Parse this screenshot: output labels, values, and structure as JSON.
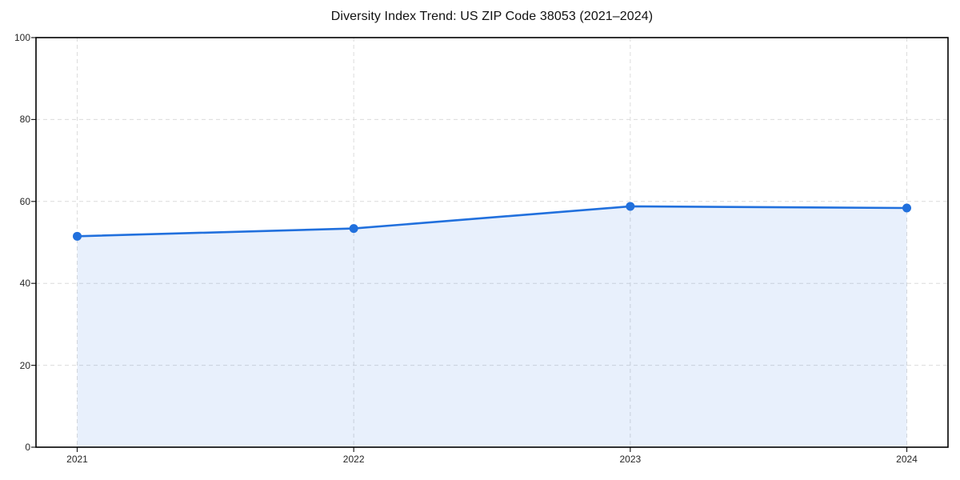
{
  "chart_data": {
    "type": "area",
    "title": "Diversity Index Trend: US ZIP Code 38053 (2021–2024)",
    "x": [
      "2021",
      "2022",
      "2023",
      "2024"
    ],
    "series": [
      {
        "name": "Diversity Index",
        "values": [
          51.5,
          53.4,
          58.8,
          58.4
        ]
      }
    ],
    "xlabel": "",
    "ylabel": "",
    "ylim": [
      0,
      100
    ],
    "yticks": [
      0,
      20,
      40,
      60,
      80,
      100
    ],
    "grid": "dashed-both-axes",
    "legend_position": "none",
    "marker_style": "circle",
    "colors": {
      "line": "#2170DD",
      "marker": "#2170DD",
      "fill": "#2170DD",
      "fill_opacity": "0.10",
      "grid": "#DCDCDC",
      "spine": "#000000",
      "tick_mark": "#222222",
      "tick_label": "#262626",
      "title": "#111111",
      "background": "#FFFFFF"
    }
  }
}
